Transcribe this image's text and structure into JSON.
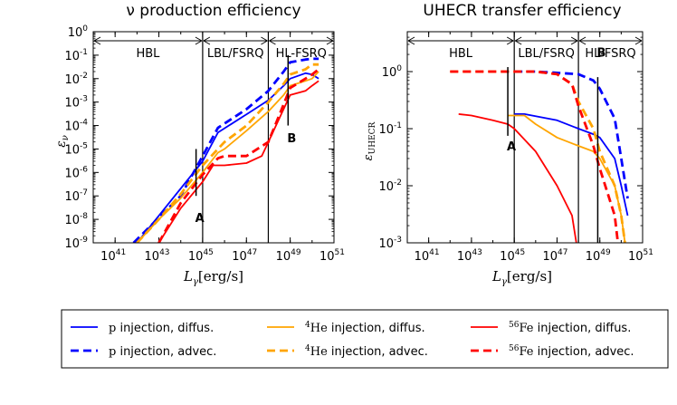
{
  "chart_data": [
    {
      "type": "line",
      "title": "ν production efficiency",
      "xlabel": "L_γ[erg/s]",
      "ylabel": "ε_ν",
      "xscale": "log",
      "yscale": "log",
      "xlim": [
        1e+40,
        1e+51
      ],
      "ylim": [
        1e-09,
        1
      ],
      "x_ticks": [
        {
          "value": 1e+41,
          "base": "10",
          "exp": "41"
        },
        {
          "value": 1e+43,
          "base": "10",
          "exp": "43"
        },
        {
          "value": 1e+45,
          "base": "10",
          "exp": "45"
        },
        {
          "value": 1e+47,
          "base": "10",
          "exp": "47"
        },
        {
          "value": 1e+49,
          "base": "10",
          "exp": "49"
        },
        {
          "value": 1e+51,
          "base": "10",
          "exp": "51"
        }
      ],
      "y_ticks": [
        {
          "value": 1e-09,
          "base": "10",
          "exp": "-9"
        },
        {
          "value": 1e-08,
          "base": "10",
          "exp": "-8"
        },
        {
          "value": 1e-07,
          "base": "10",
          "exp": "-7"
        },
        {
          "value": 1e-06,
          "base": "10",
          "exp": "-6"
        },
        {
          "value": 1e-05,
          "base": "10",
          "exp": "-5"
        },
        {
          "value": 0.0001,
          "base": "10",
          "exp": "-4"
        },
        {
          "value": 0.001,
          "base": "10",
          "exp": "-3"
        },
        {
          "value": 0.01,
          "base": "10",
          "exp": "-2"
        },
        {
          "value": 0.1,
          "base": "10",
          "exp": "-1"
        },
        {
          "value": 1,
          "base": "10",
          "exp": "0"
        }
      ],
      "regions": [
        {
          "label": "HBL",
          "from": 1e+40,
          "to": 1e+45
        },
        {
          "label": "LBL/FSRQ",
          "from": 1e+45,
          "to": 1e+48
        },
        {
          "label": "HL-FSRQ",
          "from": 1e+48,
          "to": 1e+51
        }
      ],
      "markers": [
        {
          "label": "A",
          "x": 5e+44,
          "y_from": 1e-07,
          "y_to": 1e-05,
          "label_y": 1.2e-08
        },
        {
          "label": "B",
          "x": 8e+48,
          "y_from": 0.0001,
          "y_to": 0.1,
          "label_y": 3e-05
        }
      ],
      "series": [
        {
          "name": "p injection, diffus.",
          "color": "#0000ff",
          "dash": "solid",
          "x": [
            1e+42,
            1e+45,
            5e+45,
            1e+47,
            1e+48,
            5e+48,
            1e+49,
            5e+49,
            1e+50,
            2e+50
          ],
          "y": [
            1e-09,
            3e-06,
            5e-05,
            0.0003,
            0.0012,
            0.005,
            0.01,
            0.017,
            0.015,
            0.01
          ]
        },
        {
          "name": "p injection, advec.",
          "color": "#0000ff",
          "dash": "dashed",
          "x": [
            7e+41,
            1e+44,
            1e+45,
            5e+45,
            1e+47,
            1e+48,
            5e+48,
            1e+49,
            5e+49,
            1e+50,
            2e+50
          ],
          "y": [
            1e-09,
            1e-07,
            5e-06,
            8e-05,
            0.0005,
            0.003,
            0.02,
            0.05,
            0.065,
            0.07,
            0.07
          ]
        },
        {
          "name": "⁴He injection, diffus.",
          "color": "#ffa500",
          "dash": "solid",
          "x": [
            1e+42,
            1e+43,
            1e+44,
            1e+45,
            5e+45,
            1e+46,
            1e+47,
            1e+48,
            5e+48,
            1e+49,
            5e+49,
            1e+50,
            2e+50
          ],
          "y": [
            1e-09,
            1e-08,
            8e-08,
            1e-06,
            7e-06,
            1e-05,
            6e-05,
            0.0004,
            0.002,
            0.005,
            0.008,
            0.01,
            0.02
          ]
        },
        {
          "name": "⁴He injection, advec.",
          "color": "#ffa500",
          "dash": "dashed",
          "x": [
            1e+42,
            1e+43,
            1e+44,
            1e+45,
            5e+45,
            1e+46,
            1e+47,
            1e+48,
            5e+48,
            1e+49,
            5e+49,
            1e+50,
            2e+50
          ],
          "y": [
            1e-09,
            1e-08,
            1.2e-07,
            2e-06,
            1e-05,
            2e-05,
            0.0001,
            0.001,
            0.006,
            0.015,
            0.025,
            0.04,
            0.04
          ]
        },
        {
          "name": "⁵⁶Fe injection, diffus.",
          "color": "#ff0000",
          "dash": "solid",
          "x": [
            1e+43,
            1e+44,
            1e+45,
            3e+45,
            1e+46,
            1e+47,
            5e+47,
            1e+48,
            1e+49,
            5e+49,
            1e+50,
            2e+50
          ],
          "y": [
            1e-09,
            3e-08,
            4e-07,
            2e-06,
            2e-06,
            2.5e-06,
            5e-06,
            2e-05,
            0.002,
            0.003,
            0.005,
            0.008
          ]
        },
        {
          "name": "⁵⁶Fe injection, advec.",
          "color": "#ff0000",
          "dash": "dashed",
          "x": [
            1e+43,
            1e+44,
            1e+45,
            5e+45,
            1e+46,
            1e+47,
            1e+48,
            5e+48,
            1e+49,
            5e+49,
            1e+50,
            2e+50
          ],
          "y": [
            1e-09,
            5e-08,
            8e-07,
            4e-06,
            5e-06,
            5e-06,
            2e-05,
            0.0008,
            0.004,
            0.01,
            0.015,
            0.025
          ]
        }
      ]
    },
    {
      "type": "line",
      "title": "UHECR transfer efficiency",
      "xlabel": "L_γ[erg/s]",
      "ylabel": "ε_UHECR",
      "xscale": "log",
      "yscale": "log",
      "xlim": [
        1e+40,
        1e+51
      ],
      "ylim": [
        0.001,
        5
      ],
      "x_ticks": [
        {
          "value": 1e+41,
          "base": "10",
          "exp": "41"
        },
        {
          "value": 1e+43,
          "base": "10",
          "exp": "43"
        },
        {
          "value": 1e+45,
          "base": "10",
          "exp": "45"
        },
        {
          "value": 1e+47,
          "base": "10",
          "exp": "47"
        },
        {
          "value": 1e+49,
          "base": "10",
          "exp": "49"
        },
        {
          "value": 1e+51,
          "base": "10",
          "exp": "51"
        }
      ],
      "y_ticks": [
        {
          "value": 0.001,
          "base": "10",
          "exp": "-3"
        },
        {
          "value": 0.01,
          "base": "10",
          "exp": "-2"
        },
        {
          "value": 0.1,
          "base": "10",
          "exp": "-1"
        },
        {
          "value": 1,
          "base": "10",
          "exp": "0"
        }
      ],
      "regions": [
        {
          "label": "HBL",
          "from": 1e+40,
          "to": 1e+45
        },
        {
          "label": "LBL/FSRQ",
          "from": 1e+45,
          "to": 1e+48
        },
        {
          "label": "HL-FSRQ",
          "from": 1e+48,
          "to": 1e+51
        }
      ],
      "markers": [
        {
          "label": "A",
          "x": 5e+44,
          "y_from": 0.075,
          "y_to": 1.2,
          "label_y": 0.05
        },
        {
          "label": "B",
          "x": 8e+48,
          "y_from": 0.001,
          "y_to": 0.8,
          "label_y": 2.2
        }
      ],
      "series": [
        {
          "name": "p injection, diffus.",
          "color": "#0000ff",
          "dash": "solid",
          "x": [
            1e+45,
            3e+45,
            1e+47,
            1e+48,
            5e+48,
            1e+49,
            5e+49,
            1e+50,
            2e+50
          ],
          "y": [
            0.18,
            0.18,
            0.14,
            0.1,
            0.08,
            0.07,
            0.03,
            0.01,
            0.003
          ]
        },
        {
          "name": "p injection, advec.",
          "color": "#0000ff",
          "dash": "dashed",
          "x": [
            1e+45,
            1e+46,
            1e+47,
            1e+48,
            5e+48,
            1e+49,
            5e+49,
            1e+50,
            2e+50
          ],
          "y": [
            1.0,
            1.0,
            0.95,
            0.9,
            0.7,
            0.5,
            0.15,
            0.03,
            0.006
          ]
        },
        {
          "name": "⁴He injection, diffus.",
          "color": "#ffa500",
          "dash": "solid",
          "x": [
            5e+44,
            3e+45,
            1e+46,
            1e+47,
            1e+48,
            5e+48,
            1e+49,
            5e+49,
            1e+50,
            1.5e+50
          ],
          "y": [
            0.17,
            0.17,
            0.12,
            0.07,
            0.05,
            0.04,
            0.03,
            0.01,
            0.003,
            0.001
          ]
        },
        {
          "name": "⁴He injection, advec.",
          "color": "#ffa500",
          "dash": "dashed",
          "x": [
            1e+42,
            1e+45,
            1e+46,
            1e+47,
            5e+47,
            1e+48,
            5e+48,
            1e+49,
            5e+49,
            1e+50,
            1.5e+50
          ],
          "y": [
            1.0,
            1.0,
            1.0,
            0.9,
            0.6,
            0.3,
            0.1,
            0.04,
            0.01,
            0.003,
            0.001
          ]
        },
        {
          "name": "⁵⁶Fe injection, diffus.",
          "color": "#ff0000",
          "dash": "solid",
          "x": [
            2.5e+42,
            1e+43,
            1e+44,
            5e+44,
            1e+45,
            1e+46,
            1e+47,
            5e+47,
            8e+47
          ],
          "y": [
            0.18,
            0.17,
            0.14,
            0.12,
            0.1,
            0.04,
            0.01,
            0.003,
            0.001
          ]
        },
        {
          "name": "⁵⁶Fe injection, advec.",
          "color": "#ff0000",
          "dash": "dashed",
          "x": [
            1e+42,
            1e+45,
            1e+46,
            1e+47,
            5e+47,
            1e+48,
            5e+48,
            1e+49,
            5e+49,
            7e+49
          ],
          "y": [
            1.0,
            1.0,
            1.0,
            0.9,
            0.6,
            0.25,
            0.05,
            0.02,
            0.003,
            0.001
          ]
        }
      ]
    }
  ],
  "legend": {
    "entries": [
      {
        "prefix": "p",
        "label": " injection, diffus.",
        "color": "#0000ff",
        "dash": "solid"
      },
      {
        "prefix": "p",
        "label": " injection, advec.",
        "color": "#0000ff",
        "dash": "dashed"
      },
      {
        "prefix_sup": "4",
        "prefix": "He",
        "label": " injection, diffus.",
        "color": "#ffa500",
        "dash": "solid"
      },
      {
        "prefix_sup": "4",
        "prefix": "He",
        "label": " injection, advec.",
        "color": "#ffa500",
        "dash": "dashed"
      },
      {
        "prefix_sup": "56",
        "prefix": "Fe",
        "label": " injection, diffus.",
        "color": "#ff0000",
        "dash": "solid"
      },
      {
        "prefix_sup": "56",
        "prefix": "Fe",
        "label": " injection, advec.",
        "color": "#ff0000",
        "dash": "dashed"
      }
    ]
  }
}
